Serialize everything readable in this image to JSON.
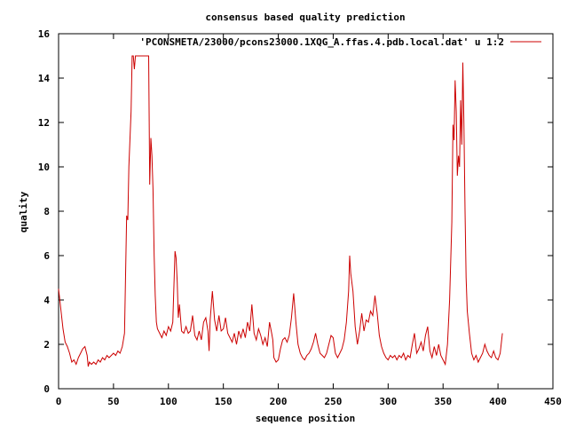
{
  "chart_data": {
    "type": "line",
    "title": "consensus based quality prediction",
    "xlabel": "sequence position",
    "ylabel": "quality",
    "xlim": [
      0,
      450
    ],
    "ylim": [
      0,
      16
    ],
    "xticks": [
      0,
      50,
      100,
      150,
      200,
      250,
      300,
      350,
      400,
      450
    ],
    "yticks": [
      0,
      2,
      4,
      6,
      8,
      10,
      12,
      14,
      16
    ],
    "grid": false,
    "legend_position": "top-right",
    "series": [
      {
        "name": "'PCONSMETA/23000/pcons23000.1XQG_A.ffas.4.pdb.local.dat' u 1:2",
        "color": "#cc0000",
        "points": [
          [
            0,
            4.5
          ],
          [
            2,
            3.6
          ],
          [
            4,
            2.7
          ],
          [
            6,
            2.1
          ],
          [
            8,
            1.9
          ],
          [
            10,
            1.6
          ],
          [
            12,
            1.2
          ],
          [
            14,
            1.3
          ],
          [
            16,
            1.1
          ],
          [
            18,
            1.4
          ],
          [
            20,
            1.6
          ],
          [
            22,
            1.8
          ],
          [
            24,
            1.9
          ],
          [
            26,
            1.5
          ],
          [
            27,
            1.0
          ],
          [
            28,
            1.2
          ],
          [
            30,
            1.1
          ],
          [
            32,
            1.2
          ],
          [
            34,
            1.1
          ],
          [
            36,
            1.3
          ],
          [
            38,
            1.2
          ],
          [
            40,
            1.4
          ],
          [
            42,
            1.3
          ],
          [
            44,
            1.5
          ],
          [
            46,
            1.4
          ],
          [
            48,
            1.5
          ],
          [
            50,
            1.6
          ],
          [
            52,
            1.5
          ],
          [
            54,
            1.7
          ],
          [
            56,
            1.6
          ],
          [
            58,
            1.9
          ],
          [
            60,
            2.5
          ],
          [
            62,
            7.8
          ],
          [
            63,
            7.6
          ],
          [
            64,
            10.0
          ],
          [
            66,
            12.5
          ],
          [
            67,
            15.0
          ],
          [
            68,
            15.0
          ],
          [
            69,
            14.4
          ],
          [
            70,
            15.0
          ],
          [
            72,
            15.0
          ],
          [
            74,
            15.0
          ],
          [
            76,
            15.0
          ],
          [
            78,
            15.0
          ],
          [
            80,
            15.0
          ],
          [
            82,
            15.0
          ],
          [
            83,
            9.2
          ],
          [
            84,
            11.3
          ],
          [
            85,
            10.5
          ],
          [
            86,
            9.0
          ],
          [
            87,
            6.0
          ],
          [
            88,
            4.2
          ],
          [
            89,
            3.0
          ],
          [
            90,
            2.7
          ],
          [
            92,
            2.5
          ],
          [
            94,
            2.3
          ],
          [
            96,
            2.6
          ],
          [
            98,
            2.4
          ],
          [
            100,
            2.8
          ],
          [
            102,
            2.6
          ],
          [
            104,
            3.0
          ],
          [
            106,
            6.2
          ],
          [
            107,
            5.9
          ],
          [
            108,
            4.8
          ],
          [
            109,
            3.2
          ],
          [
            110,
            3.8
          ],
          [
            112,
            2.6
          ],
          [
            114,
            2.5
          ],
          [
            116,
            2.8
          ],
          [
            118,
            2.5
          ],
          [
            120,
            2.6
          ],
          [
            122,
            3.3
          ],
          [
            124,
            2.4
          ],
          [
            126,
            2.2
          ],
          [
            128,
            2.6
          ],
          [
            130,
            2.2
          ],
          [
            132,
            3.0
          ],
          [
            134,
            3.2
          ],
          [
            136,
            2.6
          ],
          [
            137,
            1.7
          ],
          [
            138,
            3.1
          ],
          [
            140,
            4.4
          ],
          [
            142,
            3.1
          ],
          [
            144,
            2.6
          ],
          [
            146,
            3.3
          ],
          [
            148,
            2.6
          ],
          [
            150,
            2.7
          ],
          [
            152,
            3.2
          ],
          [
            154,
            2.5
          ],
          [
            156,
            2.3
          ],
          [
            158,
            2.1
          ],
          [
            160,
            2.5
          ],
          [
            162,
            2.0
          ],
          [
            164,
            2.6
          ],
          [
            166,
            2.3
          ],
          [
            168,
            2.7
          ],
          [
            170,
            2.3
          ],
          [
            172,
            3.0
          ],
          [
            174,
            2.6
          ],
          [
            176,
            3.8
          ],
          [
            178,
            2.5
          ],
          [
            180,
            2.2
          ],
          [
            182,
            2.7
          ],
          [
            184,
            2.4
          ],
          [
            186,
            2.0
          ],
          [
            188,
            2.3
          ],
          [
            190,
            1.9
          ],
          [
            192,
            3.0
          ],
          [
            194,
            2.5
          ],
          [
            195,
            2.2
          ],
          [
            196,
            1.4
          ],
          [
            198,
            1.2
          ],
          [
            200,
            1.3
          ],
          [
            202,
            1.8
          ],
          [
            204,
            2.2
          ],
          [
            206,
            2.3
          ],
          [
            208,
            2.1
          ],
          [
            210,
            2.4
          ],
          [
            212,
            3.2
          ],
          [
            214,
            4.3
          ],
          [
            216,
            3.0
          ],
          [
            218,
            2.0
          ],
          [
            220,
            1.6
          ],
          [
            222,
            1.4
          ],
          [
            224,
            1.3
          ],
          [
            226,
            1.5
          ],
          [
            228,
            1.6
          ],
          [
            230,
            1.8
          ],
          [
            232,
            2.1
          ],
          [
            234,
            2.5
          ],
          [
            236,
            2.0
          ],
          [
            238,
            1.6
          ],
          [
            240,
            1.5
          ],
          [
            242,
            1.4
          ],
          [
            244,
            1.6
          ],
          [
            246,
            2.0
          ],
          [
            248,
            2.4
          ],
          [
            250,
            2.3
          ],
          [
            252,
            1.6
          ],
          [
            254,
            1.4
          ],
          [
            256,
            1.6
          ],
          [
            258,
            1.8
          ],
          [
            260,
            2.2
          ],
          [
            262,
            3.0
          ],
          [
            264,
            4.4
          ],
          [
            265,
            6.0
          ],
          [
            266,
            5.2
          ],
          [
            268,
            4.4
          ],
          [
            270,
            2.8
          ],
          [
            272,
            2.0
          ],
          [
            274,
            2.6
          ],
          [
            276,
            3.4
          ],
          [
            278,
            2.6
          ],
          [
            280,
            3.1
          ],
          [
            282,
            3.0
          ],
          [
            284,
            3.5
          ],
          [
            286,
            3.3
          ],
          [
            288,
            4.2
          ],
          [
            290,
            3.4
          ],
          [
            292,
            2.4
          ],
          [
            294,
            1.9
          ],
          [
            296,
            1.6
          ],
          [
            298,
            1.4
          ],
          [
            300,
            1.3
          ],
          [
            302,
            1.5
          ],
          [
            304,
            1.4
          ],
          [
            306,
            1.5
          ],
          [
            308,
            1.3
          ],
          [
            310,
            1.5
          ],
          [
            312,
            1.4
          ],
          [
            314,
            1.6
          ],
          [
            316,
            1.3
          ],
          [
            318,
            1.5
          ],
          [
            320,
            1.4
          ],
          [
            322,
            2.0
          ],
          [
            324,
            2.5
          ],
          [
            326,
            1.6
          ],
          [
            328,
            1.8
          ],
          [
            330,
            2.1
          ],
          [
            332,
            1.7
          ],
          [
            334,
            2.4
          ],
          [
            336,
            2.8
          ],
          [
            338,
            1.7
          ],
          [
            340,
            1.4
          ],
          [
            342,
            1.9
          ],
          [
            344,
            1.5
          ],
          [
            346,
            2.0
          ],
          [
            348,
            1.5
          ],
          [
            350,
            1.3
          ],
          [
            352,
            1.1
          ],
          [
            354,
            2.0
          ],
          [
            356,
            4.0
          ],
          [
            358,
            7.5
          ],
          [
            359,
            11.9
          ],
          [
            360,
            11.2
          ],
          [
            361,
            13.9
          ],
          [
            362,
            12.5
          ],
          [
            363,
            9.6
          ],
          [
            364,
            10.5
          ],
          [
            365,
            10.0
          ],
          [
            366,
            13.0
          ],
          [
            367,
            11.0
          ],
          [
            368,
            14.7
          ],
          [
            369,
            12.0
          ],
          [
            370,
            8.0
          ],
          [
            371,
            5.0
          ],
          [
            372,
            3.5
          ],
          [
            374,
            2.5
          ],
          [
            376,
            1.6
          ],
          [
            378,
            1.3
          ],
          [
            380,
            1.5
          ],
          [
            382,
            1.2
          ],
          [
            384,
            1.4
          ],
          [
            386,
            1.6
          ],
          [
            388,
            2.0
          ],
          [
            390,
            1.7
          ],
          [
            392,
            1.5
          ],
          [
            394,
            1.4
          ],
          [
            396,
            1.7
          ],
          [
            398,
            1.4
          ],
          [
            400,
            1.3
          ],
          [
            402,
            1.6
          ],
          [
            404,
            2.5
          ]
        ]
      }
    ]
  }
}
